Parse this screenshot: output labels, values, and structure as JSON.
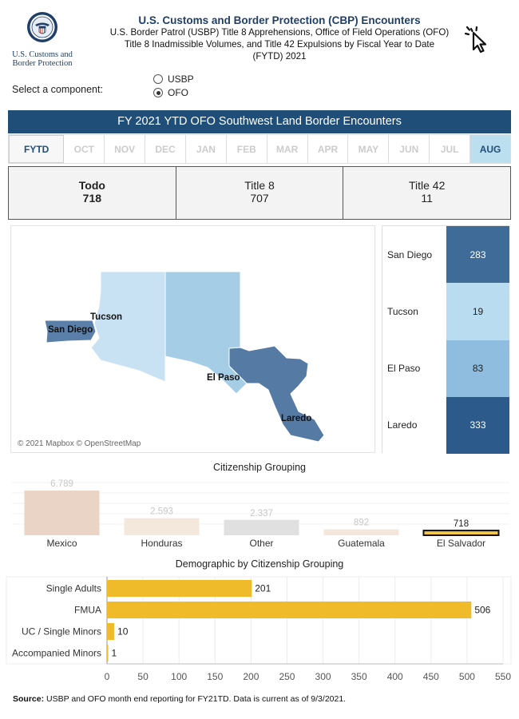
{
  "header": {
    "title": "U.S. Customs and Border Protection (CBP) Encounters",
    "subtitle_lines": [
      "U.S. Border Patrol (USBP) Title 8 Apprehensions, Office of Field Operations (OFO)",
      "Title 8 Inadmissible Volumes, and Title 42 Expulsions by Fiscal Year to Date",
      "(FYTD) 2021"
    ],
    "logo_text_line1": "U.S. Customs and",
    "logo_text_line2": "Border Protection"
  },
  "selector": {
    "label": "Select a component:",
    "options": [
      "USBP",
      "OFO"
    ],
    "selected": "OFO"
  },
  "banner": "FY 2021 YTD OFO Southwest Land Border Encounters",
  "months": [
    "FYTD",
    "OCT",
    "NOV",
    "DEC",
    "JAN",
    "FEB",
    "MAR",
    "APR",
    "MAY",
    "JUN",
    "JUL",
    "AUG"
  ],
  "kpis": [
    {
      "label": "Todo",
      "value": "718"
    },
    {
      "label": "Title 8",
      "value": "707"
    },
    {
      "label": "Title 42",
      "value": "11"
    }
  ],
  "map": {
    "labels": [
      "Tucson",
      "San Diego",
      "El Paso",
      "Laredo"
    ],
    "attribution": "© 2021 Mapbox © OpenStreetMap",
    "colors": {
      "San Diego": "#5a7fa8",
      "Tucson": "#c9e2f3",
      "El Paso": "#a6cde6",
      "Laredo": "#557aa3"
    }
  },
  "ports": [
    {
      "name": "San Diego",
      "value": "283",
      "color": "#3f6b99",
      "text": "#ffffff"
    },
    {
      "name": "Tucson",
      "value": "19",
      "color": "#b9dcf0",
      "text": "#222222"
    },
    {
      "name": "El Paso",
      "value": "83",
      "color": "#8fbde0",
      "text": "#222222"
    },
    {
      "name": "Laredo",
      "value": "333",
      "color": "#2c5a8a",
      "text": "#ffffff"
    }
  ],
  "chart_data": [
    {
      "type": "bar",
      "title": "Citizenship Grouping",
      "categories": [
        "Mexico",
        "Honduras",
        "Other",
        "Guatemala",
        "El Salvador"
      ],
      "values": [
        6789,
        2593,
        2337,
        892,
        718
      ],
      "value_labels": [
        "6.789",
        "2.593",
        "2.337",
        "892",
        "718"
      ],
      "selected": "El Salvador",
      "colors": [
        "#ead4c6",
        "#f4e8dc",
        "#e0e0e0",
        "#f5e6db",
        "#f6c646"
      ],
      "ylim": [
        0,
        8500
      ]
    },
    {
      "type": "bar",
      "orientation": "horizontal",
      "title": "Demographic by Citizenship Grouping",
      "categories": [
        "Single Adults",
        "FMUA",
        "UC / Single Minors",
        "Accompanied Minors"
      ],
      "values": [
        201,
        506,
        10,
        1
      ],
      "xticks": [
        0,
        50,
        100,
        150,
        200,
        250,
        300,
        350,
        400,
        450,
        500,
        550
      ],
      "xlim": [
        0,
        550
      ],
      "color": "#f0bb2a"
    }
  ],
  "source": {
    "label": "Source:",
    "text": "USBP and OFO month end reporting for FY21TD. Data is current as of 9/3/2021."
  }
}
